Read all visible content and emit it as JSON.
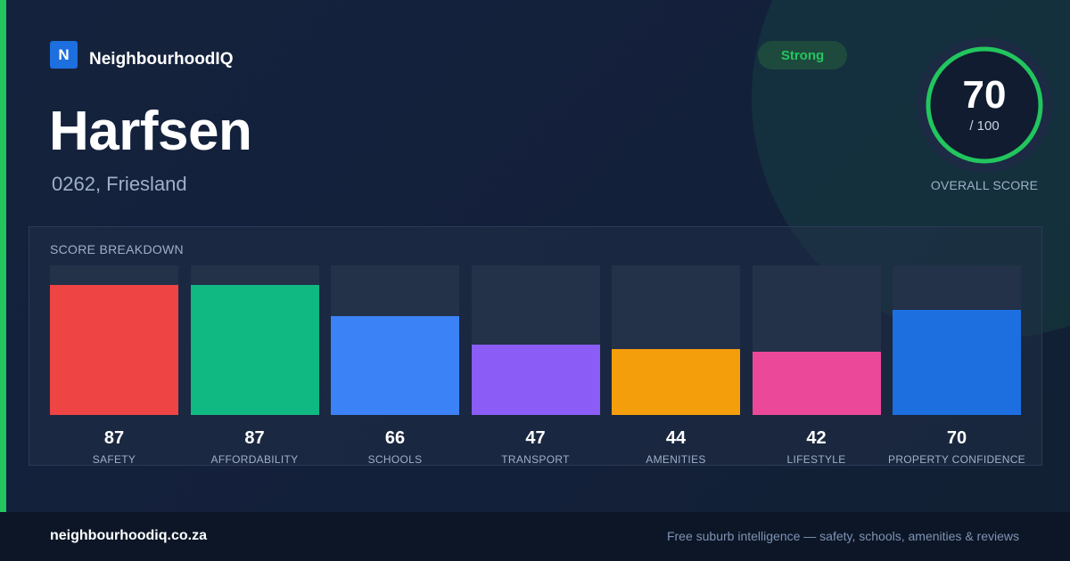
{
  "brand": {
    "logo_letter": "N",
    "name": "NeighbourhoodIQ"
  },
  "suburb": {
    "name": "Harfsen",
    "location": "0262, Friesland"
  },
  "badge": {
    "label": "Strong",
    "color": "#22c55e"
  },
  "overall": {
    "score": "70",
    "max_label": "/ 100",
    "label": "OVERALL SCORE",
    "fraction": 0.7,
    "ring_color": "#22c55e"
  },
  "chart_data": {
    "type": "bar",
    "title": "SCORE BREAKDOWN",
    "ylim": [
      0,
      100
    ],
    "categories": [
      "SAFETY",
      "AFFORDABILITY",
      "SCHOOLS",
      "TRANSPORT",
      "AMENITIES",
      "LIFESTYLE",
      "PROPERTY CONFIDENCE"
    ],
    "values": [
      87,
      87,
      66,
      47,
      44,
      42,
      70
    ],
    "colors": [
      "#ef4444",
      "#10b981",
      "#3b82f6",
      "#8b5cf6",
      "#f59e0b",
      "#ec4899",
      "#1d6fe0"
    ]
  },
  "footer": {
    "url": "neighbourhoodiq.co.za",
    "tagline": "Free suburb intelligence — safety, schools, amenities & reviews"
  }
}
